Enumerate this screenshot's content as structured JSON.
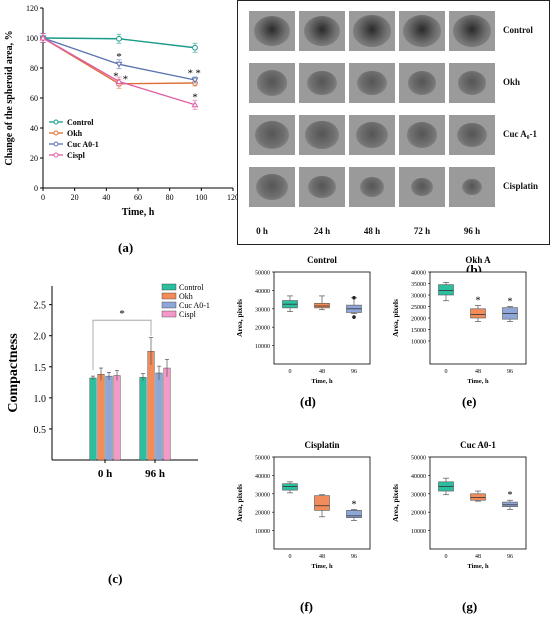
{
  "panel_labels": {
    "a": "(a)",
    "b": "(b)",
    "c": "(c)",
    "d": "(d)",
    "e": "(e)",
    "f": "(f)",
    "g": "(g)"
  },
  "colors": {
    "control": "#1a9a8a",
    "okh": "#e0703a",
    "cuc": "#5a73b0",
    "cispl": "#e05fa5",
    "box_teal": "#2bbfa0",
    "box_orange": "#f28c5a",
    "box_blue": "#8ea7d8",
    "bar_pink": "#f59ac8"
  },
  "chart_data": [
    {
      "id": "a",
      "type": "line",
      "xlabel": "Time, h",
      "ylabel": "Change of the spheroid area, %",
      "xlim": [
        0,
        120
      ],
      "ylim": [
        0,
        120
      ],
      "xticks": [
        "0",
        "20",
        "40",
        "60",
        "80",
        "100",
        "120"
      ],
      "yticks": [
        "0",
        "20",
        "40",
        "60",
        "80",
        "100",
        "120"
      ],
      "legend_position": "bottom-left",
      "series": [
        {
          "name": "Control",
          "x": [
            0,
            48,
            96
          ],
          "y": [
            100,
            99.5,
            93.5
          ],
          "err": [
            3,
            3,
            3
          ]
        },
        {
          "name": "Okh",
          "x": [
            0,
            48,
            96
          ],
          "y": [
            100,
            69.5,
            70
          ],
          "err": [
            3,
            3,
            2
          ]
        },
        {
          "name": "Cuc A0-1",
          "x": [
            0,
            48,
            96
          ],
          "y": [
            100,
            82.5,
            72
          ],
          "err": [
            3,
            3,
            2
          ]
        },
        {
          "name": "Cispl",
          "x": [
            0,
            48,
            96
          ],
          "y": [
            100,
            71,
            55.5
          ],
          "err": [
            3,
            3,
            3
          ]
        }
      ],
      "annotations": [
        {
          "text": "*",
          "x": 48,
          "y": 88
        },
        {
          "text": "*",
          "x": 46,
          "y": 75
        },
        {
          "text": "*",
          "x": 52,
          "y": 73
        },
        {
          "text": "*",
          "x": 93,
          "y": 77
        },
        {
          "text": "*",
          "x": 98,
          "y": 77
        },
        {
          "text": "*",
          "x": 96,
          "y": 61
        }
      ]
    },
    {
      "id": "c",
      "type": "bar",
      "ylabel": "Compactness",
      "categories": [
        "0 h",
        "96 h"
      ],
      "ylim": [
        0,
        2.8
      ],
      "yticks": [
        "0.5",
        "1.0",
        "1.5",
        "2.0",
        "2.5"
      ],
      "legend_position": "top-right",
      "series": [
        {
          "name": "Control",
          "values": [
            1.32,
            1.33
          ],
          "err": [
            0.03,
            0.06
          ]
        },
        {
          "name": "Okh",
          "values": [
            1.38,
            1.75
          ],
          "err": [
            0.1,
            0.22
          ]
        },
        {
          "name": "Cuc A0-1",
          "values": [
            1.35,
            1.4
          ],
          "err": [
            0.06,
            0.11
          ]
        },
        {
          "name": "Cispl",
          "values": [
            1.36,
            1.48
          ],
          "err": [
            0.08,
            0.14
          ]
        }
      ],
      "annotations": [
        {
          "text": "*"
        }
      ]
    },
    {
      "id": "d",
      "type": "box",
      "title": "Control",
      "xlabel": "Time, h",
      "ylabel": "Area, pixels",
      "categories": [
        "0",
        "48",
        "96"
      ],
      "ylim": [
        0,
        50000
      ],
      "yticks": [
        "10000",
        "20000",
        "30000",
        "40000",
        "50000"
      ],
      "boxes": [
        {
          "min": 28500,
          "q1": 30500,
          "median": 32500,
          "q3": 34500,
          "max": 37000
        },
        {
          "min": 29500,
          "q1": 30500,
          "median": 31500,
          "q3": 33000,
          "max": 37000
        },
        {
          "min": 27500,
          "q1": 28000,
          "median": 30000,
          "q3": 32000,
          "max": 36000,
          "outliers": [
            36000,
            25500
          ]
        }
      ],
      "annotations": []
    },
    {
      "id": "e",
      "type": "box",
      "title": "Okh A",
      "xlabel": "Time, h",
      "ylabel": "Area, pixels",
      "categories": [
        "0",
        "48",
        "96"
      ],
      "ylim": [
        0,
        40000
      ],
      "yticks": [
        "10000",
        "15000",
        "20000",
        "25000",
        "30000",
        "35000",
        "40000"
      ],
      "boxes": [
        {
          "min": 27500,
          "q1": 30000,
          "median": 32000,
          "q3": 34500,
          "max": 35500
        },
        {
          "min": 18500,
          "q1": 20000,
          "median": 21500,
          "q3": 24000,
          "max": 25500
        },
        {
          "min": 18500,
          "q1": 19500,
          "median": 22000,
          "q3": 24500,
          "max": 25000
        }
      ],
      "annotations": [
        "",
        "*",
        "*"
      ]
    },
    {
      "id": "f",
      "type": "box",
      "title": "Cisplatin",
      "xlabel": "Time, h",
      "ylabel": "Area, pixels",
      "categories": [
        "0",
        "48",
        "96"
      ],
      "ylim": [
        0,
        50000
      ],
      "yticks": [
        "10000",
        "20000",
        "30000",
        "40000",
        "50000"
      ],
      "boxes": [
        {
          "min": 30500,
          "q1": 32000,
          "median": 34000,
          "q3": 35500,
          "max": 36500
        },
        {
          "min": 17500,
          "q1": 21000,
          "median": 23500,
          "q3": 29000,
          "max": 29500
        },
        {
          "min": 15500,
          "q1": 17000,
          "median": 18000,
          "q3": 21000,
          "max": 21500
        }
      ],
      "annotations": [
        "",
        "",
        "*"
      ]
    },
    {
      "id": "g",
      "type": "box",
      "title": "Cuc A0-1",
      "xlabel": "Time, h",
      "ylabel": "Area, pixels",
      "categories": [
        "0",
        "48",
        "96"
      ],
      "ylim": [
        0,
        50000
      ],
      "yticks": [
        "10000",
        "20000",
        "30000",
        "40000",
        "50000"
      ],
      "boxes": [
        {
          "min": 29500,
          "q1": 31500,
          "median": 34000,
          "q3": 36500,
          "max": 38500
        },
        {
          "min": 26000,
          "q1": 26500,
          "median": 28000,
          "q3": 30000,
          "max": 31500
        },
        {
          "min": 21500,
          "q1": 23000,
          "median": 24000,
          "q3": 25500,
          "max": 26500
        }
      ],
      "annotations": [
        "",
        "",
        "*"
      ]
    }
  ],
  "photo_panel": {
    "rows": [
      "Control",
      "Okh",
      "Cuc A₀-1",
      "Cisplatin"
    ],
    "columns": [
      "0 h",
      "24 h",
      "48 h",
      "72 h",
      "96 h"
    ],
    "blob_size": [
      [
        0.8,
        0.8,
        0.82,
        0.84,
        0.84
      ],
      [
        0.66,
        0.64,
        0.64,
        0.62,
        0.62
      ],
      [
        0.74,
        0.72,
        0.7,
        0.66,
        0.64
      ],
      [
        0.68,
        0.6,
        0.52,
        0.48,
        0.44
      ]
    ]
  }
}
